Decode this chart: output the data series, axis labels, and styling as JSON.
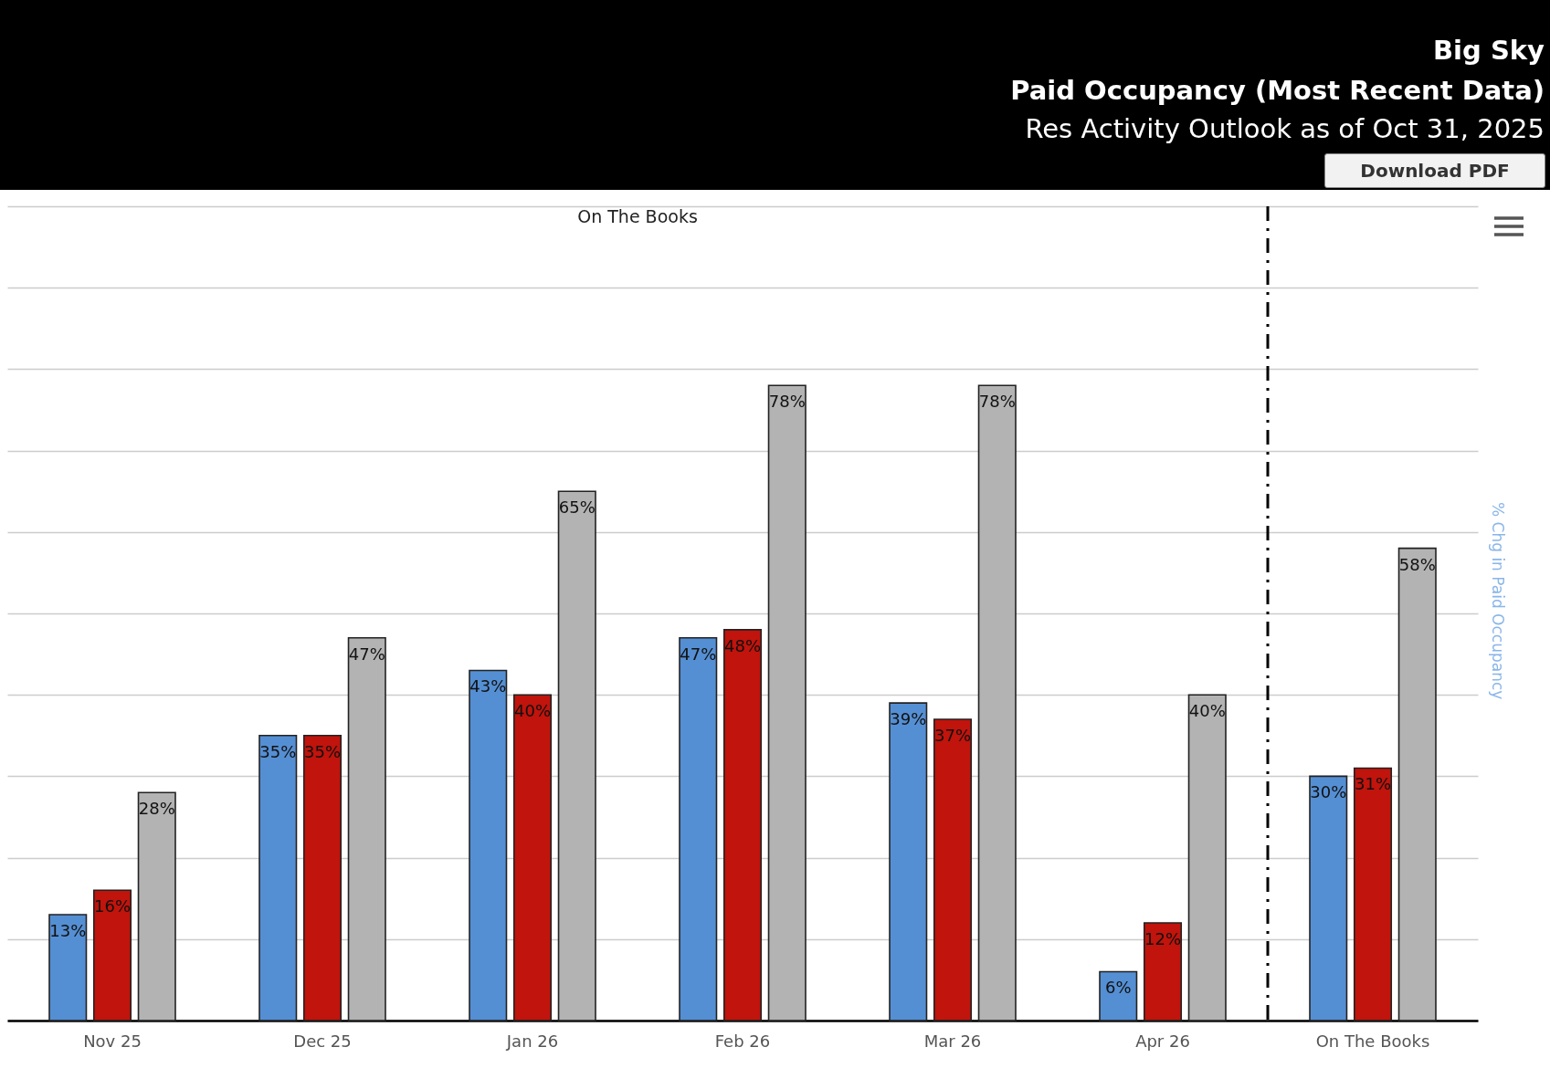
{
  "chart_data": {
    "type": "bar",
    "title": "Big Sky",
    "subtitle": "Paid Occupancy (Most Recent Data)",
    "annotations": [
      "Res Activity Outlook as of Oct 31, 2025",
      "Download PDF",
      "On The Books"
    ],
    "y2label": "% Chg in Paid Occupancy",
    "categories": [
      "Nov 25",
      "Dec 25",
      "Jan 26",
      "Feb 26",
      "Mar 26",
      "Apr 26",
      "On The Books"
    ],
    "series": [
      {
        "color": "#558fd3",
        "values": [
          13,
          35,
          43,
          47,
          39,
          6,
          30
        ],
        "value_labels": [
          "13%",
          "35%",
          "43%",
          "47%",
          "39%",
          "6%",
          "30%"
        ]
      },
      {
        "color": "#c0140c",
        "values": [
          16,
          35,
          40,
          48,
          37,
          12,
          31
        ],
        "value_labels": [
          "16%",
          "35%",
          "40%",
          "48%",
          "37%",
          "12%",
          "31%"
        ]
      },
      {
        "color": "#b3b3b3",
        "values": [
          28,
          47,
          65,
          78,
          78,
          40,
          58
        ],
        "value_labels": [
          "28%",
          "47%",
          "65%",
          "78%",
          "78%",
          "40%",
          "58%"
        ]
      }
    ],
    "ylim": [
      0,
      100
    ],
    "yticks": [
      {
        "value": 0,
        "label": null
      },
      {
        "value": 10,
        "label": null
      },
      {
        "value": 20,
        "label": null
      },
      {
        "value": 30,
        "label": null
      },
      {
        "value": 40,
        "label": null
      },
      {
        "value": 50,
        "label": null
      },
      {
        "value": 60,
        "label": null
      },
      {
        "value": 70,
        "label": null
      },
      {
        "value": 80,
        "label": null
      },
      {
        "value": 90,
        "label": null
      },
      {
        "value": 100,
        "label": null
      }
    ],
    "tick_labels": "x",
    "grid": "y",
    "ref_lines": [
      {
        "axis": "x",
        "value": "On The Books",
        "color": "#000000",
        "line_style": "dashed"
      }
    ]
  }
}
